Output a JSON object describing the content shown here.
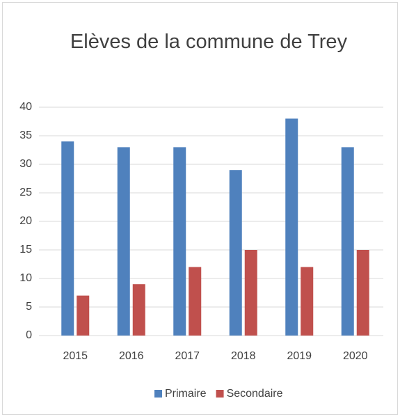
{
  "chart_data": {
    "type": "bar",
    "title": "Elèves de la commune de Trey",
    "categories": [
      "2015",
      "2016",
      "2017",
      "2018",
      "2019",
      "2020"
    ],
    "series": [
      {
        "name": "Primaire",
        "color": "#4f81bd",
        "values": [
          34,
          33,
          33,
          29,
          38,
          33
        ]
      },
      {
        "name": "Secondaire",
        "color": "#c0504d",
        "values": [
          7,
          9,
          12,
          15,
          12,
          15
        ]
      }
    ],
    "ylim": [
      0,
      40
    ],
    "yticks": [
      0,
      5,
      10,
      15,
      20,
      25,
      30,
      35,
      40
    ],
    "grid": true,
    "legend": "bottom"
  }
}
